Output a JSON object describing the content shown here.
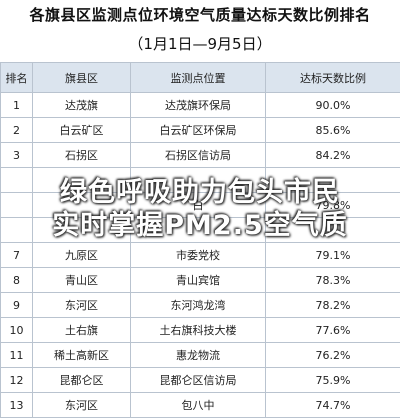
{
  "header": {
    "title": "各旗县区监测点位环境空气质量达标天数比例排名",
    "subtitle": "（1月1日—9月5日）"
  },
  "table": {
    "columns": [
      "排名",
      "旗县区",
      "监测点位置",
      "达标天数比例"
    ],
    "rows": [
      [
        "1",
        "达茂旗",
        "达茂旗环保局",
        "90.0%"
      ],
      [
        "2",
        "白云矿区",
        "白云矿区环保局",
        "85.6%"
      ],
      [
        "3",
        "石拐区",
        "石拐区信访局",
        "84.2%"
      ],
      [
        null,
        null,
        null,
        null
      ],
      [
        null,
        null,
        "白",
        "79.8%"
      ],
      [
        null,
        null,
        null,
        null
      ],
      [
        "7",
        "九原区",
        "市委党校",
        "79.1%"
      ],
      [
        "8",
        "青山区",
        "青山宾馆",
        "78.3%"
      ],
      [
        "9",
        "东河区",
        "东河鸿龙湾",
        "78.2%"
      ],
      [
        "10",
        "土右旗",
        "土右旗科技大楼",
        "77.6%"
      ],
      [
        "11",
        "稀土高新区",
        "惠龙物流",
        "76.2%"
      ],
      [
        "12",
        "昆都仑区",
        "昆都仑区信访局",
        "75.9%"
      ],
      [
        "13",
        "东河区",
        "包八中",
        "74.7%"
      ]
    ]
  },
  "overlay": {
    "lines": [
      "绿色呼吸助力包头市民",
      "实时掌握PM2.5空气质"
    ]
  }
}
